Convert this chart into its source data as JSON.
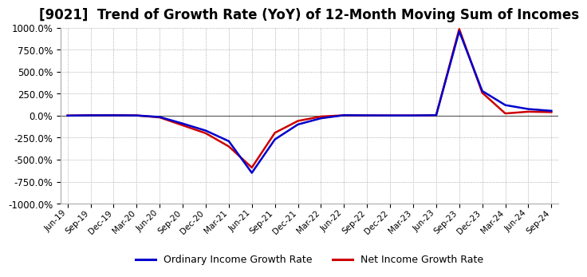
{
  "title": "[9021]  Trend of Growth Rate (YoY) of 12-Month Moving Sum of Incomes",
  "title_fontsize": 12,
  "background_color": "#ffffff",
  "plot_bg_color": "#ffffff",
  "grid_color": "#999999",
  "ylim": [
    -1000,
    1000
  ],
  "yticks": [
    -1000,
    -750,
    -500,
    -250,
    0,
    250,
    500,
    750,
    1000
  ],
  "ordinary_color": "#0000cc",
  "net_color": "#cc0000",
  "legend_labels": [
    "Ordinary Income Growth Rate",
    "Net Income Growth Rate"
  ],
  "x_labels": [
    "Jun-19",
    "Sep-19",
    "Dec-19",
    "Mar-20",
    "Jun-20",
    "Sep-20",
    "Dec-20",
    "Mar-21",
    "Jun-21",
    "Sep-21",
    "Dec-21",
    "Mar-22",
    "Jun-22",
    "Sep-22",
    "Dec-22",
    "Mar-23",
    "Jun-23",
    "Sep-23",
    "Dec-23",
    "Mar-24",
    "Jun-24",
    "Sep-24"
  ],
  "ordinary_income_growth": [
    0.5,
    3.5,
    4.0,
    2.0,
    -15.0,
    -90.0,
    -170.0,
    -290.0,
    -650.0,
    -270.0,
    -100.0,
    -30.0,
    5.0,
    3.0,
    2.0,
    2.0,
    5.0,
    960.0,
    280.0,
    120.0,
    75.0,
    55.0
  ],
  "net_income_growth": [
    0.5,
    5.0,
    5.5,
    2.5,
    -20.0,
    -110.0,
    -200.0,
    -350.0,
    -590.0,
    -195.0,
    -60.0,
    -10.0,
    4.0,
    2.0,
    1.5,
    1.5,
    4.0,
    985.0,
    260.0,
    25.0,
    45.0,
    40.0
  ]
}
